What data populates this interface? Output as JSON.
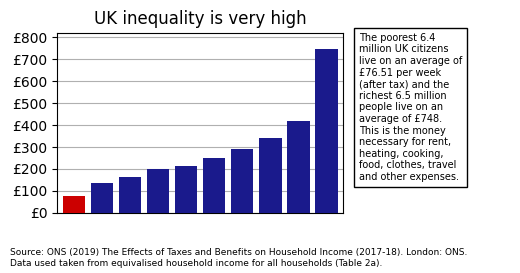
{
  "chart_data": {
    "type": "bar",
    "title": "UK inequality is very high",
    "categories": [
      null,
      null,
      null,
      null,
      null,
      null,
      null,
      null,
      null,
      null
    ],
    "values": [
      76.51,
      135,
      165,
      198,
      213,
      248,
      290,
      342,
      418,
      748
    ],
    "colors": [
      "#cc0000",
      "#1a1a8c",
      "#1a1a8c",
      "#1a1a8c",
      "#1a1a8c",
      "#1a1a8c",
      "#1a1a8c",
      "#1a1a8c",
      "#1a1a8c",
      "#1a1a8c"
    ],
    "ylim": [
      0,
      820
    ],
    "yticks": [
      {
        "value": 0,
        "label": "£0"
      },
      {
        "value": 100,
        "label": "£100"
      },
      {
        "value": 200,
        "label": "£200"
      },
      {
        "value": 300,
        "label": "£300"
      },
      {
        "value": 400,
        "label": "£400"
      },
      {
        "value": 500,
        "label": "£500"
      },
      {
        "value": 600,
        "label": "£600"
      },
      {
        "value": 700,
        "label": "£700"
      },
      {
        "value": 800,
        "label": "£800"
      }
    ],
    "grid": true,
    "tick_labels": "y",
    "annotations": [
      "The poorest 6.4\nmillion UK citizens\nlive on an average of\n£76.51 per week\n(after tax) and the\nrichest 6.5 million\npeople live on an\naverage of £748.\nThis is the money\nnecessary for rent,\nheating, cooking,\nfood, clothes, travel\nand other expenses."
    ],
    "source": [
      "Source: ONS (2019) The Effects of Taxes and Benefits on Household Income (2017-18). London: ONS.",
      "Data used taken from equivalised household income for all households (Table 2a)."
    ]
  }
}
